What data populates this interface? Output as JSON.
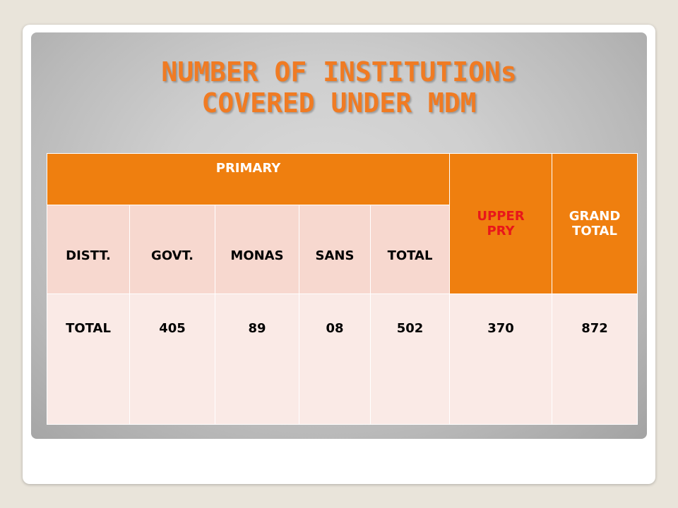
{
  "slide": {
    "title_line1": "NUMBER OF INSTITUTIONs",
    "title_line2": "COVERED UNDER MDM"
  },
  "table": {
    "primary_header": "PRIMARY",
    "upper_pry_header": "UPPER PRY",
    "grand_total_header": "GRAND TOTAL",
    "sub_headers": [
      "DISTT.",
      "GOVT.",
      "MONAS",
      "SANS",
      "TOTAL"
    ],
    "rows": [
      {
        "label": "TOTAL",
        "govt": "405",
        "monas": "89",
        "sans": "08",
        "total": "502",
        "upper_pry": "370",
        "grand_total": "872"
      }
    ]
  },
  "colors": {
    "title": "#f07b23",
    "header_orange": "#ef7f0f",
    "upper_pry_text": "#e8161b",
    "subheader_bg": "#f7d8cf",
    "body_bg": "#faeae6"
  }
}
